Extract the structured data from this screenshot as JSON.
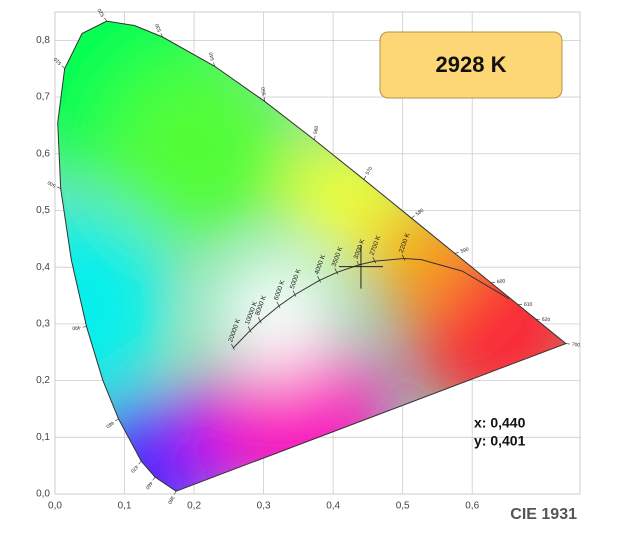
{
  "chart_data": {
    "type": "chromaticity",
    "cct_label": "2928 K",
    "footer": "CIE 1931",
    "xlim": [
      0,
      0.755
    ],
    "ylim": [
      0,
      0.85
    ],
    "xticks": [
      {
        "value": 0,
        "label": "0,0"
      },
      {
        "value": 0.1,
        "label": "0,1"
      },
      {
        "value": 0.2,
        "label": "0,2"
      },
      {
        "value": 0.3,
        "label": "0,3"
      },
      {
        "value": 0.4,
        "label": "0,4"
      },
      {
        "value": 0.5,
        "label": "0,5"
      },
      {
        "value": 0.6,
        "label": "0,6"
      }
    ],
    "yticks": [
      {
        "value": 0,
        "label": "0,0"
      },
      {
        "value": 0.1,
        "label": "0,1"
      },
      {
        "value": 0.2,
        "label": "0,2"
      },
      {
        "value": 0.3,
        "label": "0,3"
      },
      {
        "value": 0.4,
        "label": "0,4"
      },
      {
        "value": 0.5,
        "label": "0,5"
      },
      {
        "value": 0.6,
        "label": "0,6"
      },
      {
        "value": 0.7,
        "label": "0,7"
      },
      {
        "value": 0.8,
        "label": "0,8"
      }
    ],
    "grid": true,
    "point": {
      "x": 0.44,
      "y": 0.401
    },
    "point_labels": {
      "x": "x: 0,440",
      "y": "y: 0,401"
    },
    "spectral_locus": {
      "labels": [
        380,
        460,
        470,
        480,
        null,
        490,
        null,
        500,
        null,
        510,
        null,
        520,
        null,
        530,
        540,
        550,
        560,
        570,
        580,
        590,
        600,
        610,
        620,
        700
      ],
      "x": [
        0.1741,
        0.144,
        0.1241,
        0.0913,
        0.0687,
        0.0454,
        0.0235,
        0.0082,
        0.0039,
        0.0139,
        0.0389,
        0.0743,
        0.1142,
        0.1547,
        0.2296,
        0.3016,
        0.3731,
        0.4441,
        0.5125,
        0.5752,
        0.627,
        0.6658,
        0.6915,
        0.7347
      ],
      "y": [
        0.005,
        0.0297,
        0.0578,
        0.1327,
        0.2007,
        0.295,
        0.4127,
        0.5384,
        0.6548,
        0.7502,
        0.812,
        0.8338,
        0.8262,
        0.8059,
        0.7543,
        0.6923,
        0.6245,
        0.5547,
        0.4866,
        0.4242,
        0.3725,
        0.334,
        0.3083,
        0.2653
      ]
    },
    "planckian_locus": {
      "labels": [
        "20000 K",
        "10000 K",
        "8000 K",
        "6000 K",
        "5000 K",
        "4000 K",
        "3500 K",
        "3000 K",
        "2700 K",
        "2200 K",
        null,
        null,
        null
      ],
      "x": [
        0.2565,
        0.2807,
        0.2952,
        0.3221,
        0.3451,
        0.3805,
        0.4053,
        0.4369,
        0.4599,
        0.502,
        0.5267,
        0.5857,
        0.6528
      ],
      "y": [
        0.2577,
        0.2884,
        0.3048,
        0.3318,
        0.3516,
        0.3768,
        0.3907,
        0.4041,
        0.4106,
        0.4152,
        0.4133,
        0.3931,
        0.3444
      ]
    }
  }
}
